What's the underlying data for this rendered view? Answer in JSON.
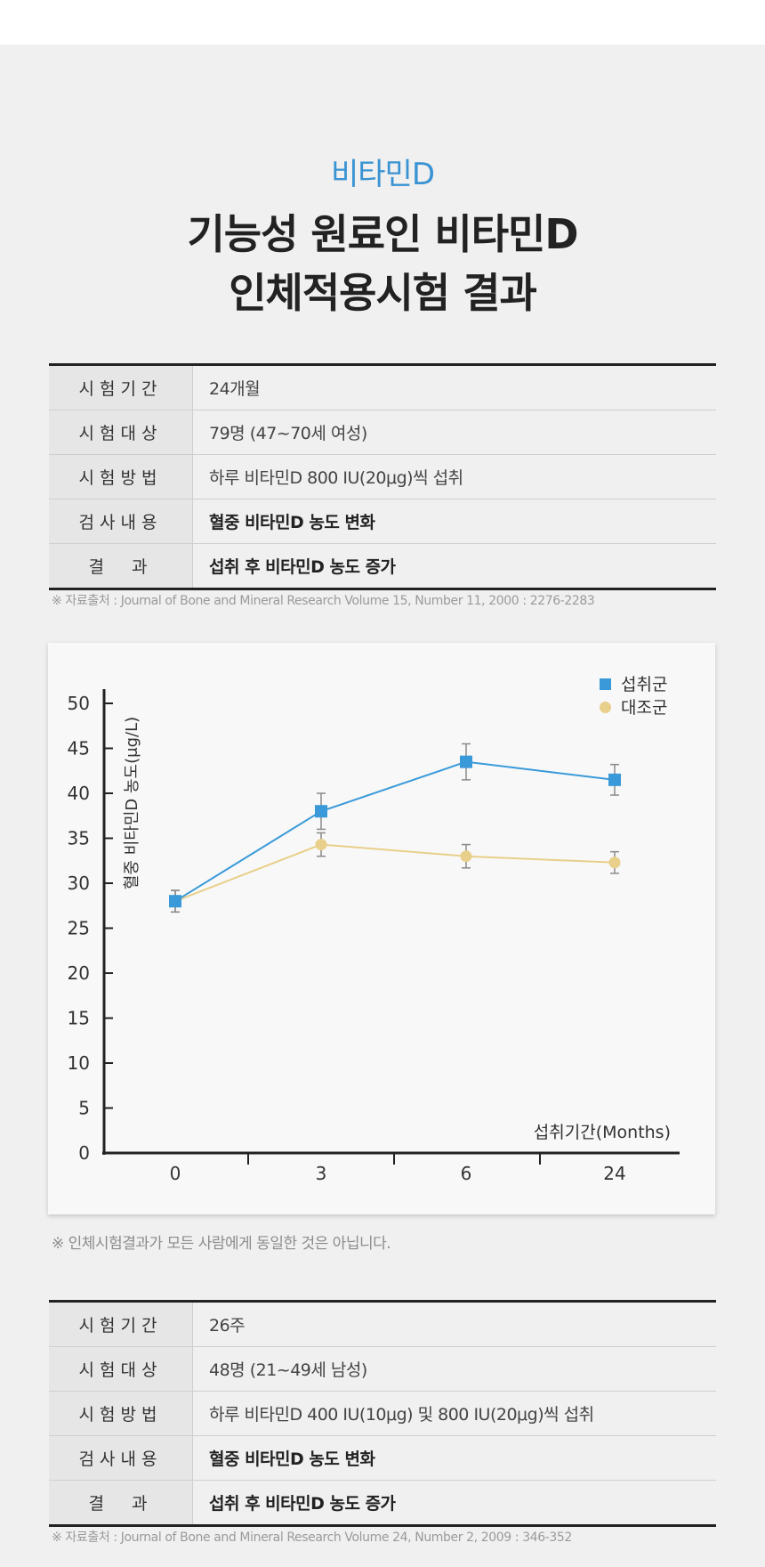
{
  "header": {
    "eyebrow": "비타민D",
    "headline_line1": "기능성 원료인 비타민D",
    "headline_line2": "인체적용시험 결과"
  },
  "study1": {
    "rows": [
      {
        "key": "시험기간",
        "value": "24개월"
      },
      {
        "key": "시험대상",
        "value": "79명 (47~70세 여성)"
      },
      {
        "key": "시험방법",
        "value": "하루 비타민D 800 IU(20μg)씩 섭취"
      },
      {
        "key": "검사내용",
        "value": "혈중 비타민D 농도 변화"
      },
      {
        "key": "결　과",
        "value": "섭취 후 비타민D 농도 증가"
      }
    ],
    "source": "※ 자료출처 : Journal of Bone and Mineral Research Volume 15, Number 11, 2000 : 2276-2283"
  },
  "chart_data": {
    "type": "line",
    "ylabel": "혈중 비타민D 농도(μg/L)",
    "xlabel": "섭취기간(Months)",
    "categories": [
      "0",
      "3",
      "6",
      "24"
    ],
    "ylim": [
      0,
      50
    ],
    "yticks": [
      "0",
      "5",
      "10",
      "15",
      "20",
      "25",
      "30",
      "35",
      "40",
      "45",
      "50"
    ],
    "legend_position": "top-right",
    "series": [
      {
        "name": "섭취군",
        "marker": "square",
        "color": "#3a9ad9",
        "values": [
          28,
          38,
          43.5,
          41.5
        ],
        "error": [
          1.2,
          2,
          2,
          1.7
        ]
      },
      {
        "name": "대조군",
        "marker": "circle",
        "color": "#e8cf8a",
        "values": [
          28,
          34.3,
          33,
          32.3
        ],
        "error": [
          1.2,
          1.3,
          1.3,
          1.2
        ]
      }
    ]
  },
  "disclaimer": "※ 인체시험결과가 모든 사람에게 동일한 것은 아닙니다.",
  "study2": {
    "rows": [
      {
        "key": "시험기간",
        "value": "26주"
      },
      {
        "key": "시험대상",
        "value": "48명 (21~49세 남성)"
      },
      {
        "key": "시험방법",
        "value": "하루 비타민D 400 IU(10μg) 및 800 IU(20μg)씩 섭취"
      },
      {
        "key": "검사내용",
        "value": "혈중 비타민D 농도 변화"
      },
      {
        "key": "결　과",
        "value": "섭취 후 비타민D 농도 증가"
      }
    ],
    "source": "※ 자료출처 : Journal of Bone and Mineral Research Volume 24, Number 2, 2009 : 346-352"
  }
}
